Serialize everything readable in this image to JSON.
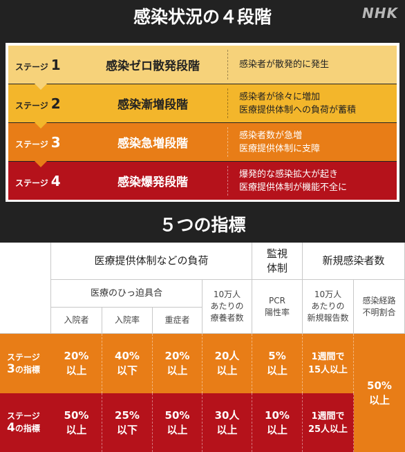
{
  "header1": {
    "title": "感染状況の４段階"
  },
  "logo": "NHK",
  "stages": [
    {
      "label": "ステージ",
      "num": "1",
      "name": "感染ゼロ散発段階",
      "desc": [
        "感染者が散発的に発生"
      ]
    },
    {
      "label": "ステージ",
      "num": "2",
      "name": "感染漸増段階",
      "desc": [
        "感染者が徐々に増加",
        "医療提供体制への負荷が蓄積"
      ]
    },
    {
      "label": "ステージ",
      "num": "3",
      "name": "感染急増段階",
      "desc": [
        "感染者数が急増",
        "医療提供体制に支障"
      ]
    },
    {
      "label": "ステージ",
      "num": "4",
      "name": "感染爆発段階",
      "desc": [
        "爆発的な感染拡大が起き",
        "医療提供体制が機能不全に"
      ]
    }
  ],
  "header2": {
    "title": "５つの指標"
  },
  "indicators": {
    "group_medical": "医療提供体制などの負荷",
    "group_surveillance": [
      "監視",
      "体制"
    ],
    "group_new_cases": "新規感染者数",
    "sub_hospital": "医療のひっ迫具合",
    "sub_recuperating": [
      "10万人",
      "あたりの",
      "療養者数"
    ],
    "sub_pcr": [
      "PCR",
      "陽性率"
    ],
    "sub_new_reports": [
      "10万人",
      "あたりの",
      "新規報告数"
    ],
    "sub_unknown_route": [
      "感染経路",
      "不明割合"
    ],
    "col_inpatients": "入院者",
    "col_hospital_rate": "入院率",
    "col_severe": "重症者",
    "stage3": {
      "label": [
        "ステージ",
        "3",
        "の指標"
      ],
      "inpatients": [
        "20%",
        "以上"
      ],
      "hospital_rate": [
        "40%",
        "以下"
      ],
      "severe": [
        "20%",
        "以上"
      ],
      "recuperating": [
        "20人",
        "以上"
      ],
      "pcr": [
        "5%",
        "以上"
      ],
      "new_reports": [
        "1週間で",
        "15人以上"
      ]
    },
    "stage4": {
      "label": [
        "ステージ",
        "4",
        "の指標"
      ],
      "inpatients": [
        "50%",
        "以上"
      ],
      "hospital_rate": [
        "25%",
        "以下"
      ],
      "severe": [
        "50%",
        "以上"
      ],
      "recuperating": [
        "30人",
        "以上"
      ],
      "pcr": [
        "10%",
        "以上"
      ],
      "new_reports": [
        "1週間で",
        "25人以上"
      ]
    },
    "unknown_route_value": [
      "50%",
      "以上"
    ]
  },
  "colors": {
    "stage1": "#f6d27a",
    "stage2": "#f3b62b",
    "stage3": "#e87d17",
    "stage4": "#b5121b",
    "header_bg": "#222222"
  }
}
